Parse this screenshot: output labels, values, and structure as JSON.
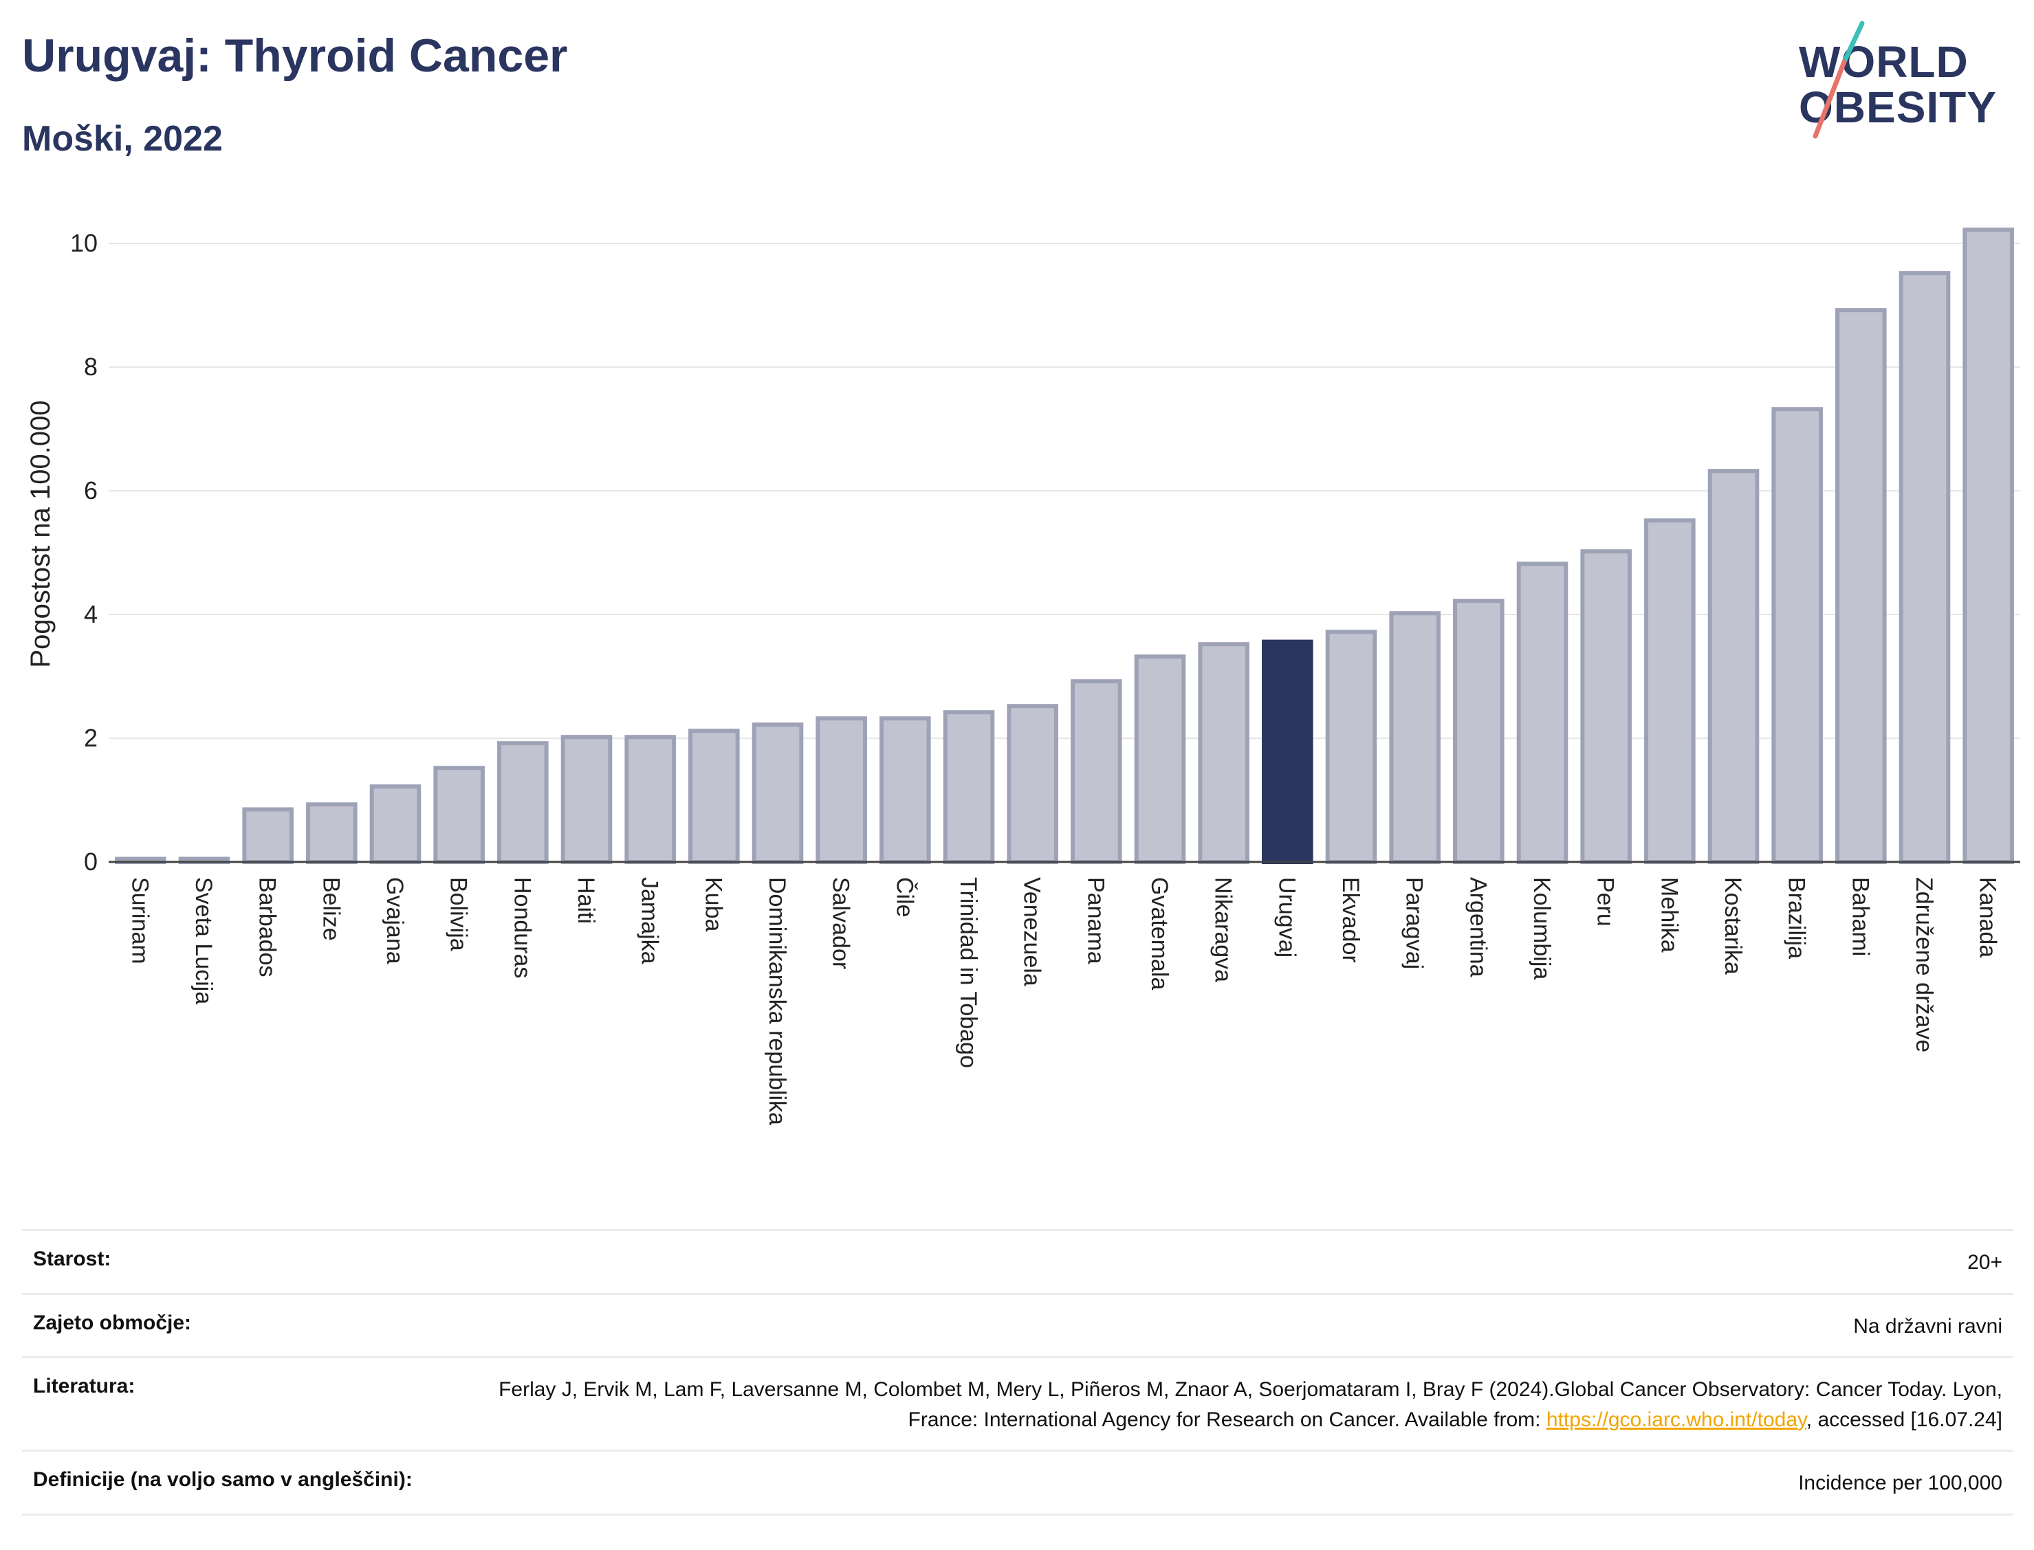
{
  "header": {
    "title": "Urugvaj: Thyroid Cancer",
    "subtitle": "Moški, 2022"
  },
  "logo": {
    "line1": "WORLD",
    "line2": "OBESITY",
    "icon": "slash-logo-icon"
  },
  "colors": {
    "highlight": "#2a3560",
    "bar_fill": "#c1c4d0",
    "bar_stroke": "#9da2b6",
    "grid": "#e6e6e6"
  },
  "chart_data": {
    "type": "bar",
    "title": "Urugvaj: Thyroid Cancer",
    "subtitle": "Moški, 2022",
    "xlabel": "",
    "ylabel": "Pogostost na 100.000",
    "ylim": [
      0,
      10.6
    ],
    "yticks": [
      0,
      2,
      4,
      6,
      8,
      10
    ],
    "grid": true,
    "highlight": "Urugvaj",
    "categories": [
      "Surinam",
      "Sveta Lucija",
      "Barbados",
      "Belize",
      "Gvajana",
      "Bolivija",
      "Honduras",
      "Haiti",
      "Jamajka",
      "Kuba",
      "Dominikanska republika",
      "Salvador",
      "Čile",
      "Trinidad in Tobago",
      "Venezuela",
      "Panama",
      "Gvatemala",
      "Nikaragva",
      "Urugvaj",
      "Ekvador",
      "Paragvaj",
      "Argentina",
      "Kolumbija",
      "Peru",
      "Mehika",
      "Kostarika",
      "Brazilija",
      "Bahami",
      "Združene države",
      "Kanada"
    ],
    "values": [
      0.05,
      0.05,
      0.85,
      0.93,
      1.22,
      1.52,
      1.92,
      2.02,
      2.02,
      2.12,
      2.22,
      2.32,
      2.32,
      2.42,
      2.52,
      2.92,
      3.32,
      3.52,
      3.56,
      3.72,
      4.02,
      4.22,
      4.82,
      5.02,
      5.52,
      6.32,
      7.32,
      8.92,
      9.52,
      10.22
    ]
  },
  "info": {
    "age_label": "Starost:",
    "age_value": "20+",
    "coverage_label": "Zajeto območje:",
    "coverage_value": "Na državni ravni",
    "reference_label": "Literatura:",
    "reference_text": "Ferlay J, Ervik M, Lam F, Laversanne M, Colombet M, Mery L, Piñeros M, Znaor A, Soerjomataram I, Bray F (2024).Global Cancer Observatory: Cancer Today. Lyon, France: International Agency for Research on Cancer. Available from: ",
    "reference_link": "https://gco.iarc.who.int/today",
    "reference_suffix": ", accessed [16.07.24]",
    "definitions_label": "Definicije (na voljo samo v angleščini):",
    "definitions_value": "Incidence per 100,000"
  }
}
